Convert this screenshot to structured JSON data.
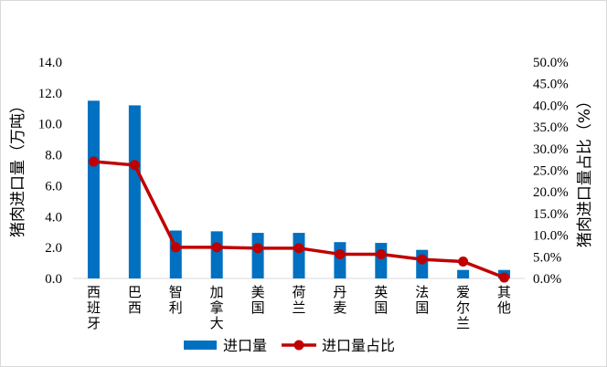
{
  "chart_data": {
    "type": "bar",
    "categories": [
      "西班牙",
      "巴西",
      "智利",
      "加拿大",
      "美国",
      "荷兰",
      "丹麦",
      "英国",
      "法国",
      "爱尔兰",
      "其他"
    ],
    "series": [
      {
        "name": "进口量",
        "type": "bar",
        "axis": "left",
        "values": [
          11.5,
          11.2,
          3.1,
          3.05,
          2.95,
          2.95,
          2.35,
          2.3,
          1.85,
          0.55,
          0.55
        ]
      },
      {
        "name": "进口量占比",
        "type": "line",
        "axis": "right",
        "values": [
          27.0,
          26.2,
          7.2,
          7.2,
          7.0,
          7.0,
          5.6,
          5.6,
          4.4,
          3.9,
          0.2
        ]
      }
    ],
    "ylabel": "猪肉进口量（万吨）",
    "y2label": "猪肉进口量占比（%）",
    "ylim": [
      0,
      14
    ],
    "y2lim": [
      0,
      50
    ],
    "y_ticks": [
      "0.0",
      "2.0",
      "4.0",
      "6.0",
      "8.0",
      "10.0",
      "12.0",
      "14.0"
    ],
    "y2_ticks": [
      "0.0%",
      "5.0%",
      "10.0%",
      "15.0%",
      "20.0%",
      "25.0%",
      "30.0%",
      "35.0%",
      "40.0%",
      "45.0%",
      "50.0%"
    ],
    "grid": false,
    "legend": "bottom",
    "colors": {
      "bar": "#0070C0",
      "line": "#C00000"
    }
  }
}
